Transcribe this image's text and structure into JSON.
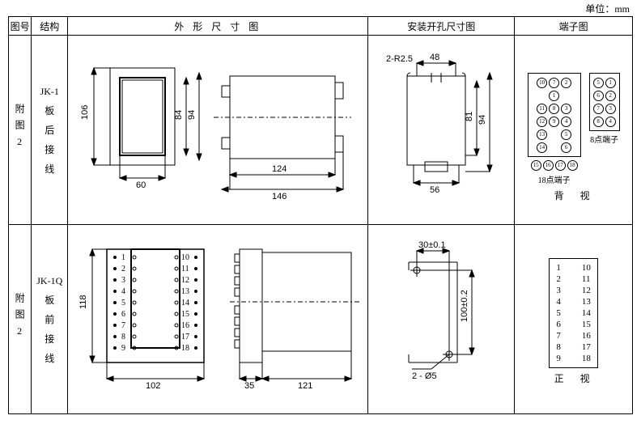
{
  "unit_label": "单位：mm",
  "headers": {
    "fignum": "图号",
    "struct": "结构",
    "outline": "外 形 尺 寸 图",
    "mount": "安装开孔尺寸图",
    "term": "端子图"
  },
  "row1": {
    "fignum": "附图2",
    "struct_model": "JK-1",
    "struct_lines": [
      "板",
      "后",
      "接",
      "线"
    ],
    "outline": {
      "h106": "106",
      "h84": "84",
      "h94": "94",
      "w60": "60",
      "w124": "124",
      "w146": "146"
    },
    "mount": {
      "r": "2-R2.5",
      "w48": "48",
      "h81": "81",
      "h94": "94",
      "w56": "56"
    },
    "term": {
      "label18": "18点端子",
      "label8": "8点端子",
      "view": "背　视",
      "t18": [
        [
          "10",
          "7",
          "2",
          "1"
        ],
        [
          "11",
          "8",
          "3"
        ],
        [
          "12",
          "9",
          "4"
        ],
        [
          "13",
          "5"
        ],
        [
          "14",
          "6"
        ],
        [
          "15"
        ],
        [
          "16"
        ],
        [
          "17"
        ],
        [
          "18"
        ]
      ],
      "t8": [
        [
          "5",
          "1"
        ],
        [
          "6",
          "2"
        ],
        [
          "7",
          "3"
        ],
        [
          "8",
          "4"
        ]
      ]
    }
  },
  "row2": {
    "fignum": "附图2",
    "struct_model": "JK-1Q",
    "struct_lines": [
      "板",
      "前",
      "接",
      "线"
    ],
    "outline": {
      "h118": "118",
      "w102": "102",
      "w35": "35",
      "w121": "121",
      "left_nums": [
        "1",
        "2",
        "3",
        "4",
        "5",
        "6",
        "7",
        "8",
        "9"
      ],
      "right_nums": [
        "10",
        "11",
        "12",
        "13",
        "14",
        "15",
        "16",
        "17",
        "18"
      ]
    },
    "mount": {
      "w30": "30±0.1",
      "h100": "100±0.2",
      "holes": "2 - Ø5"
    },
    "term": {
      "view": "正　视",
      "rows": [
        [
          "1",
          "10"
        ],
        [
          "2",
          "11"
        ],
        [
          "3",
          "12"
        ],
        [
          "4",
          "13"
        ],
        [
          "5",
          "14"
        ],
        [
          "6",
          "15"
        ],
        [
          "7",
          "16"
        ],
        [
          "8",
          "17"
        ],
        [
          "9",
          "18"
        ]
      ]
    }
  },
  "colors": {
    "line": "#000000",
    "dash": "4,3"
  }
}
